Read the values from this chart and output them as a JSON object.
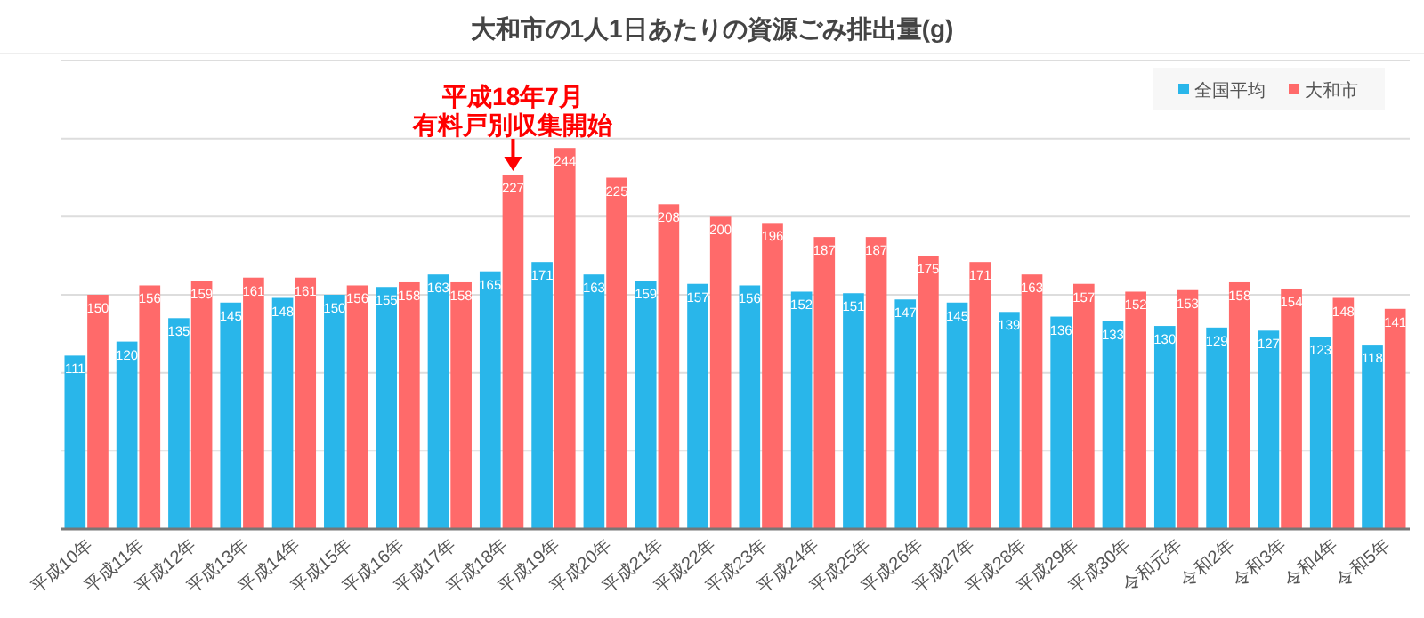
{
  "chart_data": {
    "type": "bar",
    "title": "大和市の1人1日あたりの資源ごみ排出量(g)",
    "categories": [
      "平成10年",
      "平成11年",
      "平成12年",
      "平成13年",
      "平成14年",
      "平成15年",
      "平成16年",
      "平成17年",
      "平成18年",
      "平成19年",
      "平成20年",
      "平成21年",
      "平成22年",
      "平成23年",
      "平成24年",
      "平成25年",
      "平成26年",
      "平成27年",
      "平成28年",
      "平成29年",
      "平成30年",
      "令和元年",
      "令和2年",
      "令和3年",
      "令和4年",
      "令和5年"
    ],
    "series": [
      {
        "name": "全国平均",
        "color": "#29b6ea",
        "values": [
          111,
          120,
          135,
          145,
          148,
          150,
          155,
          163,
          165,
          171,
          163,
          159,
          157,
          156,
          152,
          151,
          147,
          145,
          139,
          136,
          133,
          130,
          129,
          127,
          123,
          118
        ]
      },
      {
        "name": "大和市",
        "color": "#ff6a6a",
        "values": [
          150,
          156,
          159,
          161,
          161,
          156,
          158,
          158,
          227,
          244,
          225,
          208,
          200,
          196,
          187,
          187,
          175,
          171,
          163,
          157,
          152,
          153,
          158,
          154,
          148,
          141
        ]
      }
    ],
    "ylim": [
      0,
      300
    ],
    "yticks": [
      {
        "value": 50,
        "label": null
      },
      {
        "value": 100,
        "label": null
      },
      {
        "value": 150,
        "label": null
      },
      {
        "value": 200,
        "label": null
      },
      {
        "value": 250,
        "label": null
      },
      {
        "value": 300,
        "label": null
      }
    ],
    "tick_labels": "x",
    "grid": "y",
    "legend": "top right",
    "data_labels": true,
    "annotations": [
      {
        "text": "平成18年7月",
        "x": "平成18年",
        "y": 227
      },
      {
        "text": "有料戸別収集開始",
        "x": "平成18年",
        "y": 227
      }
    ]
  }
}
